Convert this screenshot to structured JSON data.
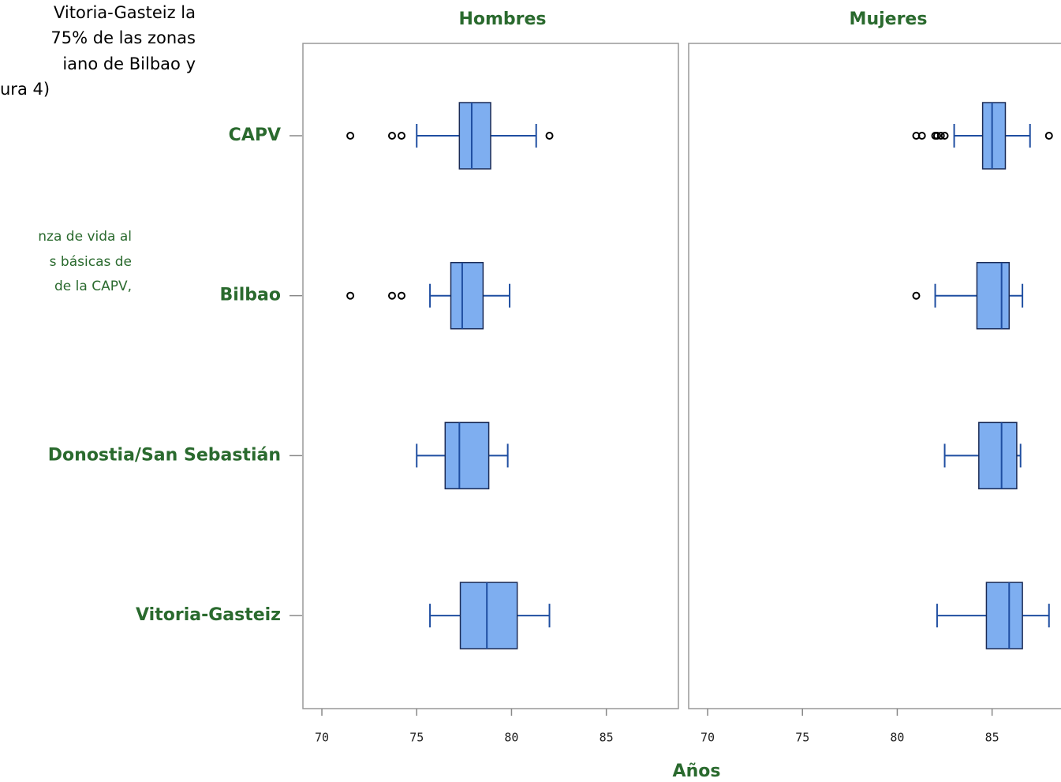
{
  "document": {
    "paragraph": [
      "Vitoria-Gasteiz la",
      "75% de las zonas",
      "iano de Bilbao y",
      "ura 4)"
    ],
    "caption": [
      "nza de vida al",
      "s básicas de",
      "de la CAPV,"
    ]
  },
  "xlabel": "Años",
  "chart_data": [
    {
      "type": "box",
      "title": "Hombres",
      "categories": [
        "CAPV",
        "Bilbao",
        "Donostia/San Sebastián",
        "Vitoria-Gasteiz"
      ],
      "xlim": [
        69,
        88.8
      ],
      "xticks": [
        70,
        75,
        80,
        85
      ],
      "fill": "#7eaef0",
      "stroke": "#1f4ea1",
      "boxes": [
        {
          "low": 75.0,
          "q1": 77.25,
          "median": 77.9,
          "q3": 78.9,
          "high": 81.3,
          "outliers": [
            71.5,
            73.7,
            74.2,
            82.0
          ]
        },
        {
          "low": 75.7,
          "q1": 76.8,
          "median": 77.4,
          "q3": 78.5,
          "high": 79.9,
          "outliers": [
            71.5,
            73.7,
            74.2
          ]
        },
        {
          "low": 75.0,
          "q1": 76.5,
          "median": 77.25,
          "q3": 78.8,
          "high": 79.8,
          "outliers": []
        },
        {
          "low": 75.7,
          "q1": 77.3,
          "median": 78.7,
          "q3": 80.3,
          "high": 82.0,
          "outliers": []
        }
      ]
    },
    {
      "type": "box",
      "title": "Mujeres",
      "xlim": [
        69,
        88.8
      ],
      "xticks": [
        70,
        75,
        80,
        85
      ],
      "fill": "#7eaef0",
      "stroke": "#1f4ea1",
      "boxes": [
        {
          "low": 83.0,
          "q1": 84.5,
          "median": 85.0,
          "q3": 85.7,
          "high": 87.0,
          "outliers": [
            81.0,
            81.3,
            82.0,
            82.1,
            82.3,
            82.5,
            88.0
          ]
        },
        {
          "low": 82.0,
          "q1": 84.2,
          "median": 85.5,
          "q3": 85.9,
          "high": 86.6,
          "outliers": [
            81.0
          ]
        },
        {
          "low": 82.5,
          "q1": 84.3,
          "median": 85.5,
          "q3": 86.3,
          "high": 86.5,
          "outliers": []
        },
        {
          "low": 82.1,
          "q1": 84.7,
          "median": 85.9,
          "q3": 86.6,
          "high": 88.0,
          "outliers": []
        }
      ]
    }
  ]
}
